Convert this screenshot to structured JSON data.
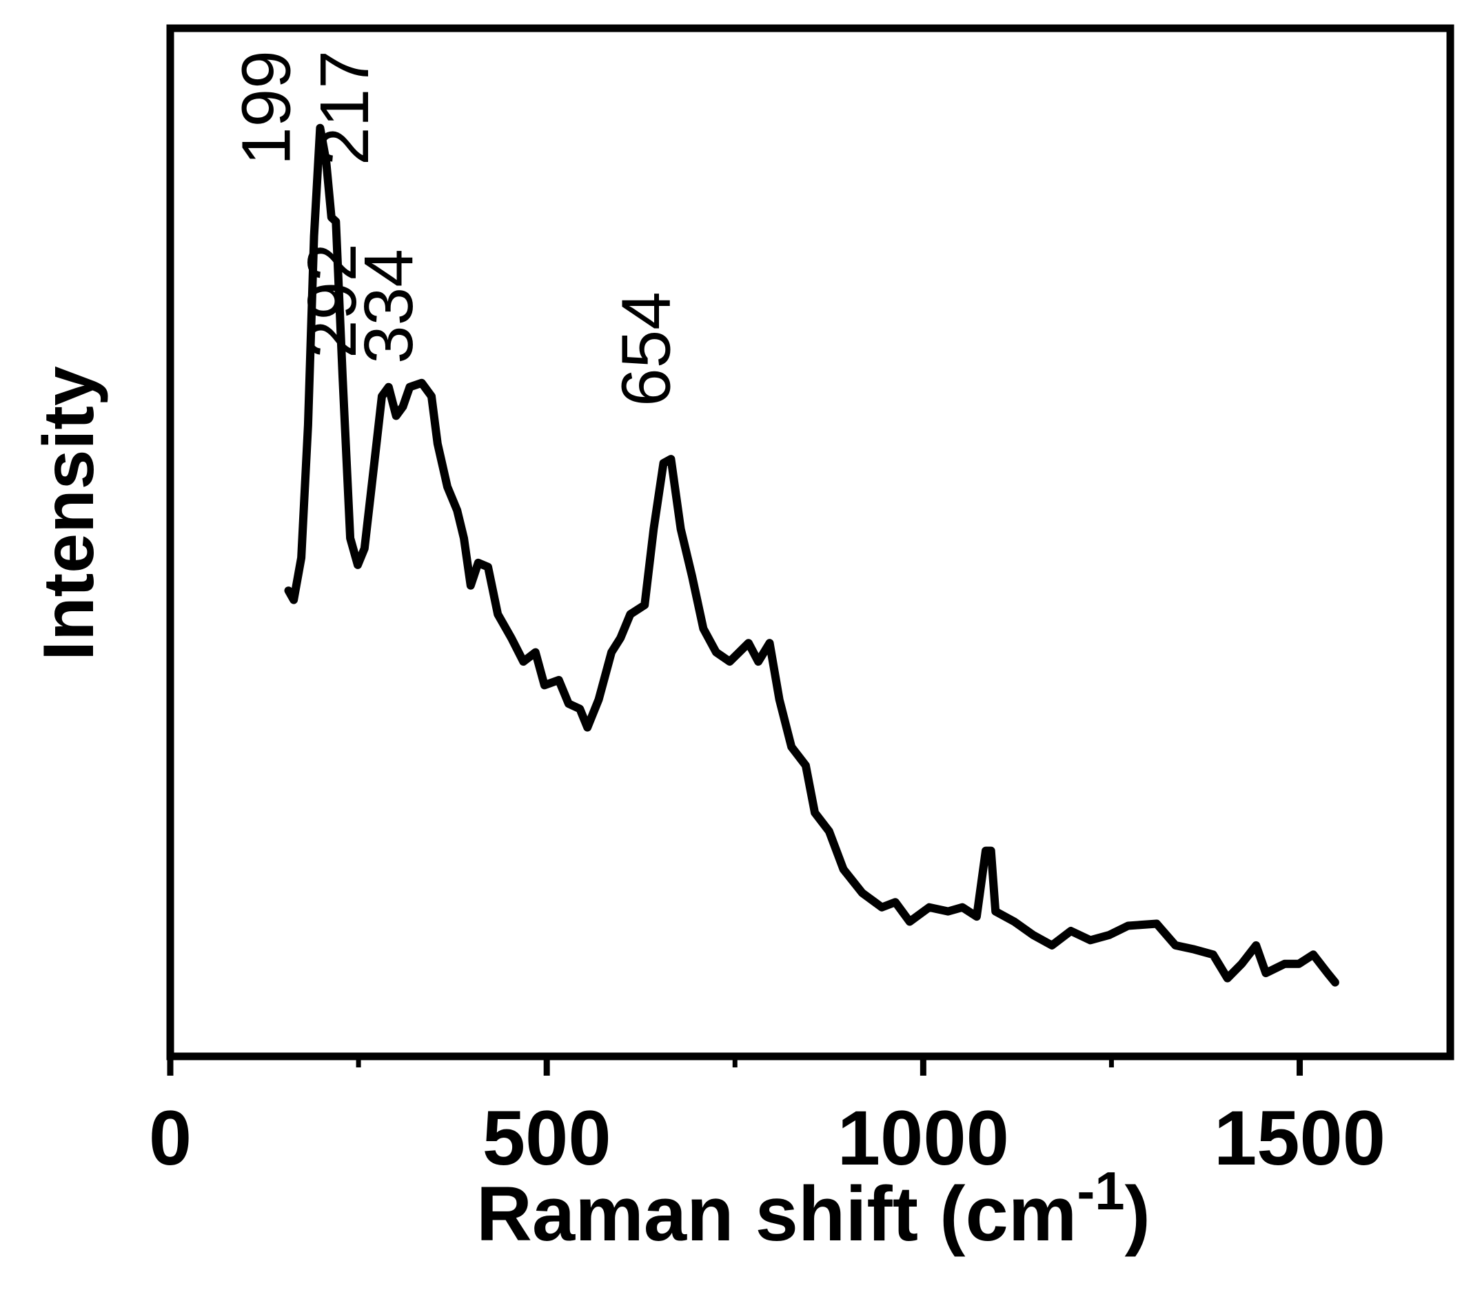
{
  "chart_data": {
    "type": "line",
    "x_label": "Raman shift (cm",
    "x_label_sup": "-1",
    "x_label_end": ")",
    "y_label": "Intensity",
    "xlim": [
      0,
      1700
    ],
    "xticks": [
      0,
      500,
      1000,
      1500
    ],
    "minor_xticks": [
      250,
      750,
      1250
    ],
    "ylim": [
      0,
      100
    ],
    "annotations": [
      {
        "text": "199",
        "x": 199
      },
      {
        "text": "217",
        "x": 217
      },
      {
        "text": "292",
        "x": 292
      },
      {
        "text": "334",
        "x": 334
      },
      {
        "text": "654",
        "x": 654
      }
    ],
    "series": [
      {
        "color": "#000000",
        "x": [
          157,
          164,
          174,
          183,
          191,
          199,
          207,
          214,
          220,
          229,
          239,
          249,
          258,
          271,
          281,
          290,
          300,
          309,
          318,
          334,
          347,
          355,
          368,
          381,
          390,
          399,
          409,
          422,
          435,
          453,
          469,
          485,
          497,
          516,
          529,
          544,
          554,
          569,
          586,
          598,
          611,
          630,
          642,
          655,
          665,
          678,
          693,
          708,
          725,
          743,
          768,
          781,
          796,
          809,
          825,
          844,
          856,
          875,
          894,
          919,
          945,
          963,
          982,
          1008,
          1033,
          1052,
          1071,
          1083,
          1090,
          1096,
          1121,
          1146,
          1171,
          1196,
          1222,
          1247,
          1272,
          1310,
          1335,
          1360,
          1385,
          1404,
          1423,
          1442,
          1455,
          1480,
          1499,
          1518,
          1537,
          1547
        ],
        "values": [
          45.3,
          44.4,
          48.5,
          61.4,
          79.8,
          90.3,
          87.1,
          81.6,
          81.2,
          66.0,
          50.4,
          47.8,
          49.4,
          57.7,
          64.2,
          65.1,
          62.3,
          63.2,
          65.1,
          65.5,
          64.2,
          59.6,
          55.4,
          53.1,
          50.4,
          45.8,
          48.0,
          47.6,
          43.0,
          40.7,
          38.4,
          39.3,
          36.1,
          36.6,
          34.3,
          33.8,
          32.0,
          34.7,
          39.3,
          40.7,
          43.0,
          43.9,
          51.3,
          57.7,
          58.1,
          51.3,
          46.7,
          41.6,
          39.3,
          38.4,
          40.2,
          38.4,
          40.2,
          34.7,
          30.1,
          28.3,
          23.7,
          21.9,
          18.2,
          15.9,
          14.5,
          15.0,
          13.1,
          14.5,
          14.1,
          14.5,
          13.6,
          20.0,
          20.0,
          14.1,
          13.1,
          11.8,
          10.8,
          12.2,
          11.3,
          11.8,
          12.7,
          12.9,
          10.8,
          10.4,
          9.9,
          7.6,
          9.0,
          10.8,
          8.1,
          9.0,
          9.0,
          9.9,
          8.1,
          7.2
        ]
      }
    ]
  }
}
